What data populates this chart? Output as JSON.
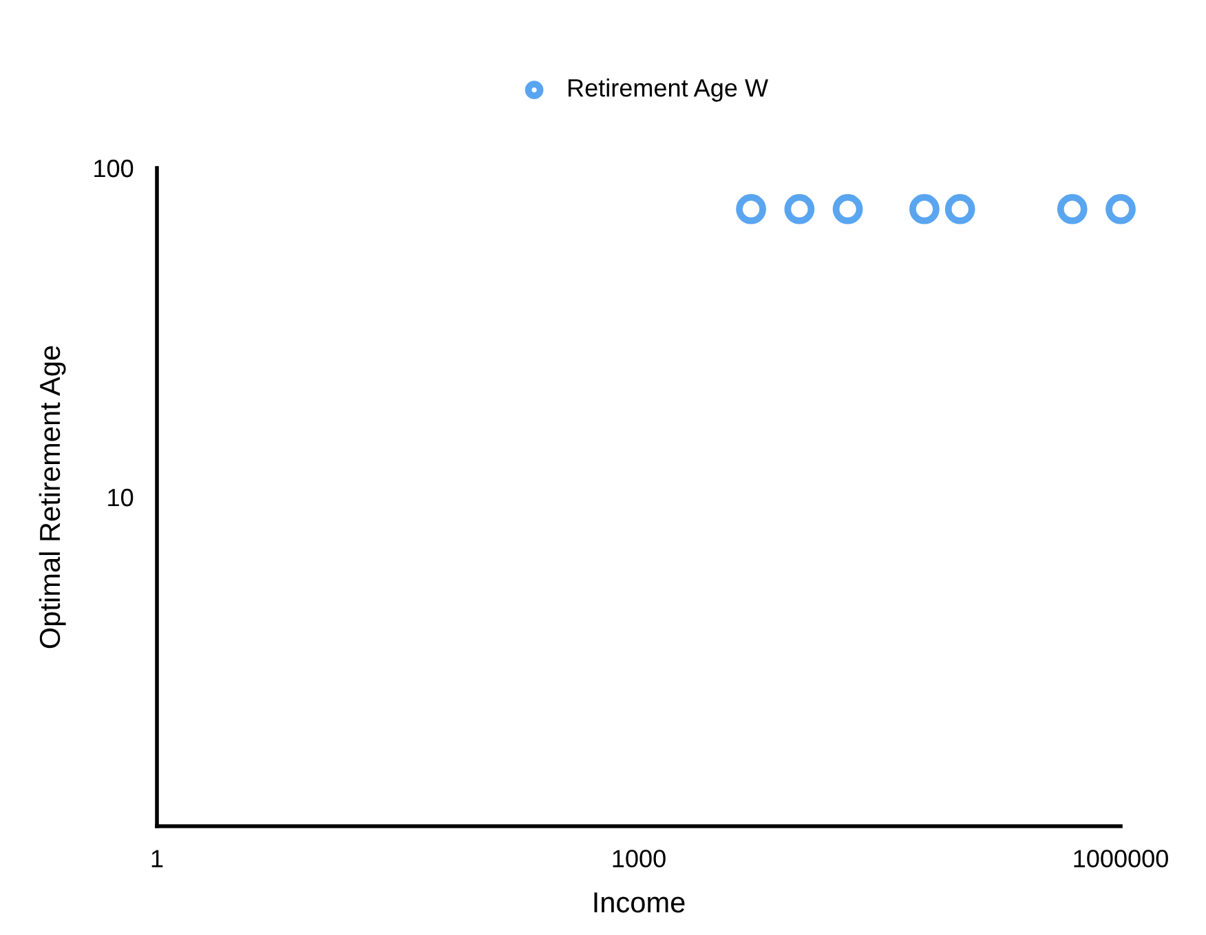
{
  "chart_data": {
    "type": "scatter",
    "xlabel": "Income",
    "ylabel": "Optimal Retirement Age",
    "series": [
      {
        "name": "Retirement Age W",
        "color": "#5aa5f0",
        "x": [
          5000,
          10000,
          20000,
          60000,
          100000,
          500000,
          1000000
        ],
        "values": [
          75,
          75,
          75,
          75,
          75,
          75,
          75
        ]
      }
    ],
    "log": "xy",
    "xlim": [
      1,
      1000000
    ],
    "ylim": [
      1,
      100
    ],
    "xticks": [
      1,
      1000,
      1000000
    ],
    "yticks": [
      10,
      100
    ],
    "marker": "circle",
    "legend": "top",
    "grid": false
  }
}
